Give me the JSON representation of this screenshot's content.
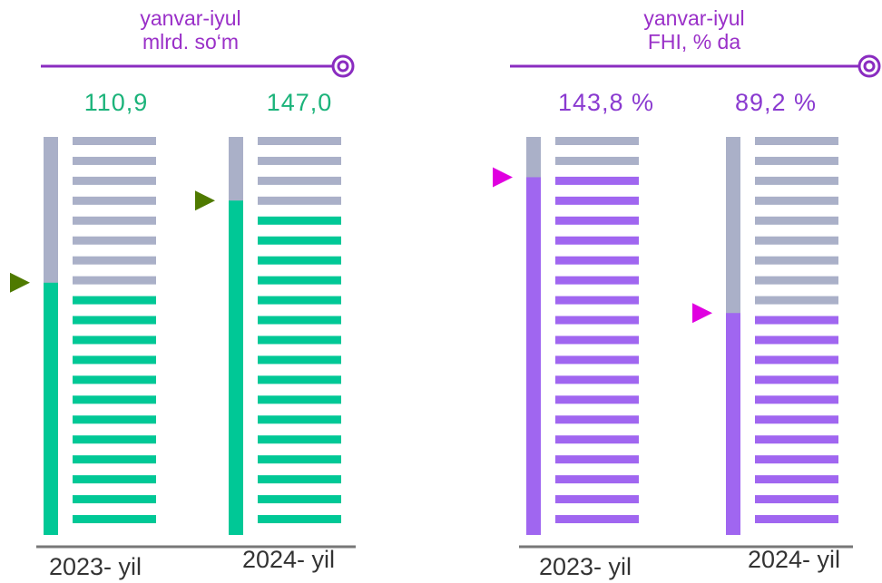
{
  "chart_data": [
    {
      "type": "bar",
      "title": "yanvar-iyul",
      "subtitle": "mlrd. so‘m",
      "categories": [
        "2023- yil",
        "2024- yil"
      ],
      "values": [
        110.9,
        147.0
      ],
      "value_labels": [
        "110,9",
        "147,0"
      ],
      "color": "#00c896",
      "background_color": "#aab0c8",
      "marker_color": "#4f7a00",
      "label_color": "#1bb37a",
      "ylim": [
        0,
        175
      ]
    },
    {
      "type": "bar",
      "title": "yanvar-iyul",
      "subtitle": "FHI, % da",
      "categories": [
        "2023- yil",
        "2024- yil"
      ],
      "values": [
        143.8,
        89.2
      ],
      "value_labels": [
        "143,8 %",
        "89,2 %"
      ],
      "color": "#a066f0",
      "background_color": "#aab0c8",
      "marker_color": "#e000e0",
      "label_color": "#8a3ad0",
      "ylim": [
        0,
        160
      ]
    }
  ]
}
